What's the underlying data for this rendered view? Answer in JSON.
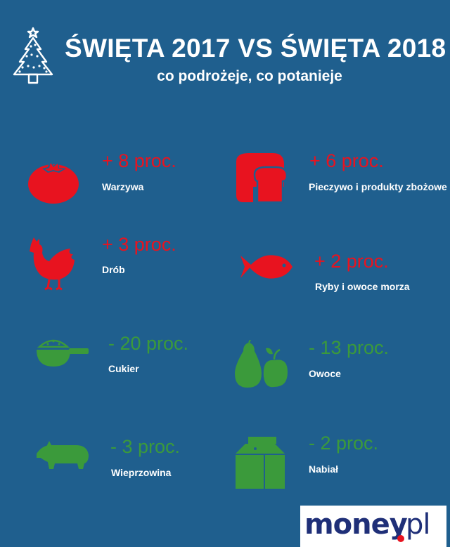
{
  "header": {
    "title": "ŚWIĘTA 2017 VS ŚWIĘTA 2018",
    "subtitle": "co podrożeje, co potanieje",
    "icon": "christmas-tree-icon"
  },
  "colors": {
    "background": "#1f5f8e",
    "increase": "#e8131f",
    "decrease": "#3b9a3b",
    "text": "#ffffff"
  },
  "items": [
    {
      "icon": "tomato-icon",
      "change": "+ 8 proc.",
      "label": "Warzywa"
    },
    {
      "icon": "bread-icon",
      "change": "+ 6 proc.",
      "label": "Pieczywo i produkty zbożowe"
    },
    {
      "icon": "hen-icon",
      "change": "+ 3 proc.",
      "label": "Drób"
    },
    {
      "icon": "fish-icon",
      "change": "+ 2 proc.",
      "label": "Ryby i owoce morza"
    },
    {
      "icon": "sugar-scoop-icon",
      "change": "- 20 proc.",
      "label": "Cukier"
    },
    {
      "icon": "fruits-icon",
      "change": "- 13 proc.",
      "label": "Owoce"
    },
    {
      "icon": "pig-icon",
      "change": "- 3 proc.",
      "label": "Wieprzowina"
    },
    {
      "icon": "milk-carton-icon",
      "change": "- 2 proc.",
      "label": "Nabiał"
    }
  ],
  "logo": {
    "name": "money",
    "suffix": "pl"
  }
}
